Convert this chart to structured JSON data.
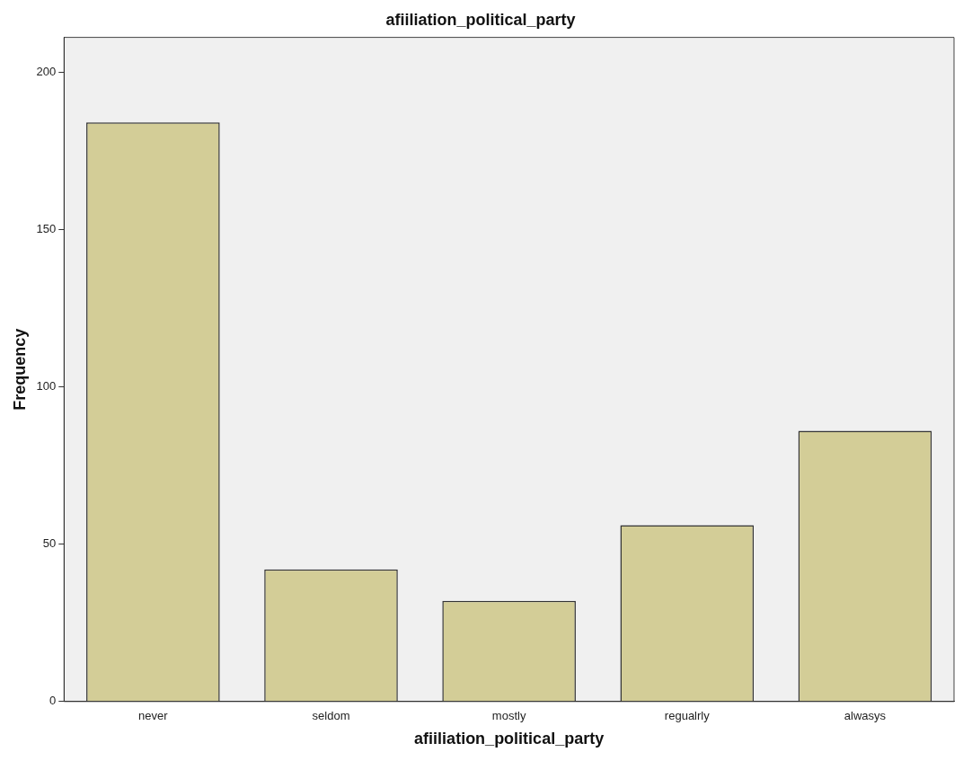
{
  "chart_data": {
    "type": "bar",
    "title": "afiiliation_political_party",
    "xlabel": "afiiliation_political_party",
    "ylabel": "Frequency",
    "categories": [
      "never",
      "seldom",
      "mostly",
      "regualrly",
      "alwasys"
    ],
    "values": [
      184,
      42,
      32,
      56,
      86
    ],
    "color": "#d3cd97",
    "ylim": [
      0,
      211
    ],
    "yticks": [
      0,
      50,
      100,
      150,
      200
    ],
    "grid": false,
    "legend": false
  }
}
